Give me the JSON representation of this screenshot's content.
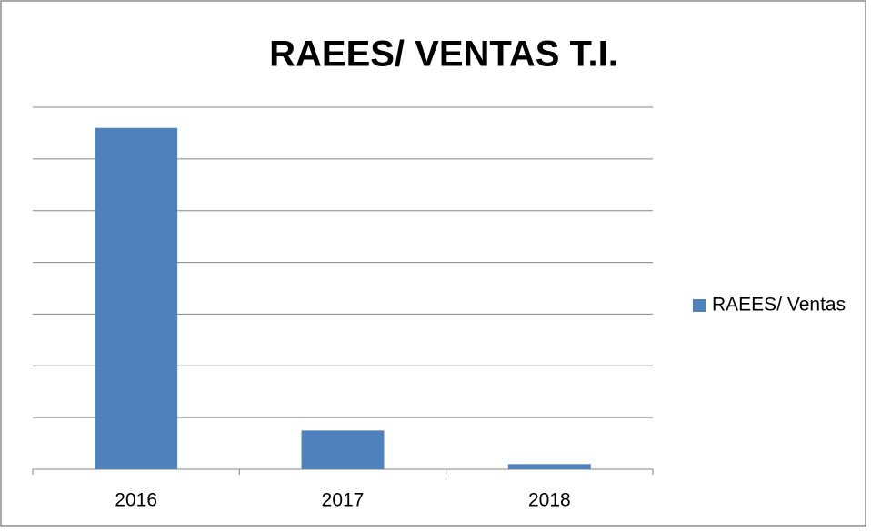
{
  "chart_data": {
    "type": "bar",
    "title": "RAEES/ VENTAS T.I.",
    "categories": [
      "2016",
      "2017",
      "2018"
    ],
    "series": [
      {
        "name": "RAEES/ Ventas",
        "color": "#4f81bd",
        "values": [
          6.6,
          0.75,
          0.1
        ]
      }
    ],
    "ylim": [
      0,
      7
    ],
    "yticks": [
      0,
      1,
      2,
      3,
      4,
      5,
      6,
      7
    ],
    "grid": true,
    "legend": "right"
  }
}
